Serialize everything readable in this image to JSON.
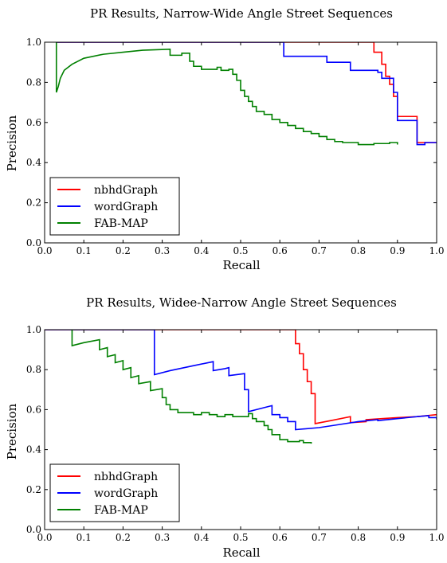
{
  "chart_data": [
    {
      "type": "line",
      "title": "PR Results, Narrow-Wide Angle Street Sequences",
      "xlabel": "Recall",
      "ylabel": "Precision",
      "xlim": [
        0.0,
        1.0
      ],
      "ylim": [
        0.0,
        1.0
      ],
      "xticks": [
        "0.0",
        "0.1",
        "0.2",
        "0.3",
        "0.4",
        "0.5",
        "0.6",
        "0.7",
        "0.8",
        "0.9",
        "1.0"
      ],
      "yticks": [
        "0.0",
        "0.2",
        "0.4",
        "0.6",
        "0.8",
        "1.0"
      ],
      "grid": false,
      "legend": "bottom-left",
      "series": [
        {
          "name": "nbhdGraph",
          "color": "#ff0000",
          "points": [
            [
              0.03,
              1.0
            ],
            [
              0.84,
              1.0
            ],
            [
              0.84,
              0.95
            ],
            [
              0.86,
              0.95
            ],
            [
              0.86,
              0.89
            ],
            [
              0.87,
              0.89
            ],
            [
              0.87,
              0.83
            ],
            [
              0.88,
              0.83
            ],
            [
              0.88,
              0.79
            ],
            [
              0.89,
              0.79
            ],
            [
              0.89,
              0.73
            ],
            [
              0.9,
              0.73
            ],
            [
              0.9,
              0.63
            ],
            [
              0.95,
              0.63
            ],
            [
              0.95,
              0.5
            ],
            [
              1.0,
              0.5
            ]
          ]
        },
        {
          "name": "wordGraph",
          "color": "#0000ff",
          "points": [
            [
              0.03,
              1.0
            ],
            [
              0.61,
              1.0
            ],
            [
              0.61,
              0.93
            ],
            [
              0.72,
              0.93
            ],
            [
              0.72,
              0.9
            ],
            [
              0.78,
              0.9
            ],
            [
              0.78,
              0.86
            ],
            [
              0.85,
              0.86
            ],
            [
              0.85,
              0.85
            ],
            [
              0.86,
              0.85
            ],
            [
              0.86,
              0.82
            ],
            [
              0.89,
              0.82
            ],
            [
              0.89,
              0.75
            ],
            [
              0.9,
              0.75
            ],
            [
              0.9,
              0.61
            ],
            [
              0.95,
              0.61
            ],
            [
              0.95,
              0.49
            ],
            [
              0.97,
              0.49
            ],
            [
              0.97,
              0.5
            ],
            [
              1.0,
              0.5
            ]
          ]
        },
        {
          "name": "FAB-MAP",
          "color": "#008000",
          "points": [
            [
              0.03,
              1.0
            ],
            [
              0.03,
              0.75
            ],
            [
              0.035,
              0.78
            ],
            [
              0.04,
              0.82
            ],
            [
              0.05,
              0.86
            ],
            [
              0.07,
              0.89
            ],
            [
              0.1,
              0.92
            ],
            [
              0.15,
              0.94
            ],
            [
              0.2,
              0.95
            ],
            [
              0.25,
              0.96
            ],
            [
              0.32,
              0.965
            ],
            [
              0.32,
              0.935
            ],
            [
              0.35,
              0.935
            ],
            [
              0.35,
              0.945
            ],
            [
              0.37,
              0.945
            ],
            [
              0.37,
              0.905
            ],
            [
              0.38,
              0.905
            ],
            [
              0.38,
              0.88
            ],
            [
              0.4,
              0.88
            ],
            [
              0.4,
              0.865
            ],
            [
              0.44,
              0.865
            ],
            [
              0.44,
              0.875
            ],
            [
              0.45,
              0.875
            ],
            [
              0.45,
              0.86
            ],
            [
              0.47,
              0.86
            ],
            [
              0.47,
              0.865
            ],
            [
              0.48,
              0.865
            ],
            [
              0.48,
              0.84
            ],
            [
              0.49,
              0.84
            ],
            [
              0.49,
              0.81
            ],
            [
              0.5,
              0.81
            ],
            [
              0.5,
              0.76
            ],
            [
              0.51,
              0.76
            ],
            [
              0.51,
              0.73
            ],
            [
              0.52,
              0.73
            ],
            [
              0.52,
              0.705
            ],
            [
              0.53,
              0.705
            ],
            [
              0.53,
              0.68
            ],
            [
              0.54,
              0.68
            ],
            [
              0.54,
              0.655
            ],
            [
              0.56,
              0.655
            ],
            [
              0.56,
              0.64
            ],
            [
              0.58,
              0.64
            ],
            [
              0.58,
              0.615
            ],
            [
              0.6,
              0.615
            ],
            [
              0.6,
              0.6
            ],
            [
              0.62,
              0.6
            ],
            [
              0.62,
              0.585
            ],
            [
              0.64,
              0.585
            ],
            [
              0.64,
              0.57
            ],
            [
              0.66,
              0.57
            ],
            [
              0.66,
              0.555
            ],
            [
              0.68,
              0.555
            ],
            [
              0.68,
              0.545
            ],
            [
              0.7,
              0.545
            ],
            [
              0.7,
              0.53
            ],
            [
              0.72,
              0.53
            ],
            [
              0.72,
              0.515
            ],
            [
              0.74,
              0.515
            ],
            [
              0.74,
              0.505
            ],
            [
              0.76,
              0.505
            ],
            [
              0.76,
              0.5
            ],
            [
              0.8,
              0.5
            ],
            [
              0.8,
              0.49
            ],
            [
              0.84,
              0.49
            ],
            [
              0.84,
              0.495
            ],
            [
              0.88,
              0.495
            ],
            [
              0.88,
              0.5
            ],
            [
              0.9,
              0.5
            ],
            [
              0.9,
              0.49
            ]
          ]
        }
      ]
    },
    {
      "type": "line",
      "title": "PR Results, Widee-Narrow Angle Street Sequences",
      "xlabel": "Recall",
      "ylabel": "Precision",
      "xlim": [
        0.0,
        1.0
      ],
      "ylim": [
        0.0,
        1.0
      ],
      "xticks": [
        "0.0",
        "0.1",
        "0.2",
        "0.3",
        "0.4",
        "0.5",
        "0.6",
        "0.7",
        "0.8",
        "0.9",
        "1.0"
      ],
      "yticks": [
        "0.0",
        "0.2",
        "0.4",
        "0.6",
        "0.8",
        "1.0"
      ],
      "grid": false,
      "legend": "bottom-left",
      "series": [
        {
          "name": "nbhdGraph",
          "color": "#ff0000",
          "points": [
            [
              0.0,
              1.0
            ],
            [
              0.64,
              1.0
            ],
            [
              0.64,
              0.93
            ],
            [
              0.65,
              0.93
            ],
            [
              0.65,
              0.88
            ],
            [
              0.66,
              0.88
            ],
            [
              0.66,
              0.8
            ],
            [
              0.67,
              0.8
            ],
            [
              0.67,
              0.74
            ],
            [
              0.68,
              0.74
            ],
            [
              0.68,
              0.68
            ],
            [
              0.69,
              0.68
            ],
            [
              0.69,
              0.53
            ],
            [
              0.73,
              0.545
            ],
            [
              0.78,
              0.565
            ],
            [
              0.78,
              0.535
            ],
            [
              0.82,
              0.54
            ],
            [
              0.82,
              0.55
            ],
            [
              0.86,
              0.555
            ],
            [
              0.9,
              0.56
            ],
            [
              0.95,
              0.565
            ],
            [
              1.0,
              0.575
            ]
          ]
        },
        {
          "name": "wordGraph",
          "color": "#0000ff",
          "points": [
            [
              0.0,
              1.0
            ],
            [
              0.28,
              1.0
            ],
            [
              0.28,
              0.775
            ],
            [
              0.32,
              0.795
            ],
            [
              0.38,
              0.82
            ],
            [
              0.43,
              0.84
            ],
            [
              0.43,
              0.795
            ],
            [
              0.46,
              0.805
            ],
            [
              0.47,
              0.81
            ],
            [
              0.47,
              0.77
            ],
            [
              0.51,
              0.78
            ],
            [
              0.51,
              0.7
            ],
            [
              0.52,
              0.7
            ],
            [
              0.52,
              0.59
            ],
            [
              0.55,
              0.605
            ],
            [
              0.58,
              0.62
            ],
            [
              0.58,
              0.575
            ],
            [
              0.6,
              0.575
            ],
            [
              0.6,
              0.56
            ],
            [
              0.62,
              0.56
            ],
            [
              0.62,
              0.54
            ],
            [
              0.64,
              0.54
            ],
            [
              0.64,
              0.5
            ],
            [
              0.7,
              0.51
            ],
            [
              0.75,
              0.525
            ],
            [
              0.8,
              0.54
            ],
            [
              0.85,
              0.55
            ],
            [
              0.85,
              0.545
            ],
            [
              0.9,
              0.555
            ],
            [
              0.95,
              0.565
            ],
            [
              0.98,
              0.57
            ],
            [
              0.98,
              0.56
            ],
            [
              1.0,
              0.56
            ],
            [
              1.0,
              0.55
            ]
          ]
        },
        {
          "name": "FAB-MAP",
          "color": "#008000",
          "points": [
            [
              0.07,
              1.0
            ],
            [
              0.07,
              0.92
            ],
            [
              0.1,
              0.935
            ],
            [
              0.14,
              0.95
            ],
            [
              0.14,
              0.9
            ],
            [
              0.16,
              0.91
            ],
            [
              0.16,
              0.865
            ],
            [
              0.18,
              0.875
            ],
            [
              0.18,
              0.835
            ],
            [
              0.2,
              0.845
            ],
            [
              0.2,
              0.8
            ],
            [
              0.22,
              0.81
            ],
            [
              0.22,
              0.76
            ],
            [
              0.24,
              0.77
            ],
            [
              0.24,
              0.73
            ],
            [
              0.27,
              0.74
            ],
            [
              0.27,
              0.695
            ],
            [
              0.3,
              0.705
            ],
            [
              0.3,
              0.66
            ],
            [
              0.31,
              0.66
            ],
            [
              0.31,
              0.625
            ],
            [
              0.32,
              0.625
            ],
            [
              0.32,
              0.6
            ],
            [
              0.34,
              0.6
            ],
            [
              0.34,
              0.585
            ],
            [
              0.38,
              0.585
            ],
            [
              0.38,
              0.575
            ],
            [
              0.4,
              0.575
            ],
            [
              0.4,
              0.585
            ],
            [
              0.42,
              0.585
            ],
            [
              0.42,
              0.575
            ],
            [
              0.44,
              0.575
            ],
            [
              0.44,
              0.565
            ],
            [
              0.46,
              0.565
            ],
            [
              0.46,
              0.575
            ],
            [
              0.48,
              0.575
            ],
            [
              0.48,
              0.565
            ],
            [
              0.52,
              0.565
            ],
            [
              0.52,
              0.58
            ],
            [
              0.53,
              0.58
            ],
            [
              0.53,
              0.555
            ],
            [
              0.54,
              0.555
            ],
            [
              0.54,
              0.54
            ],
            [
              0.56,
              0.54
            ],
            [
              0.56,
              0.52
            ],
            [
              0.57,
              0.52
            ],
            [
              0.57,
              0.5
            ],
            [
              0.58,
              0.5
            ],
            [
              0.58,
              0.475
            ],
            [
              0.6,
              0.475
            ],
            [
              0.6,
              0.45
            ],
            [
              0.62,
              0.45
            ],
            [
              0.62,
              0.44
            ],
            [
              0.65,
              0.44
            ],
            [
              0.65,
              0.445
            ],
            [
              0.66,
              0.445
            ],
            [
              0.66,
              0.435
            ],
            [
              0.68,
              0.435
            ],
            [
              0.68,
              0.43
            ]
          ]
        }
      ]
    }
  ]
}
